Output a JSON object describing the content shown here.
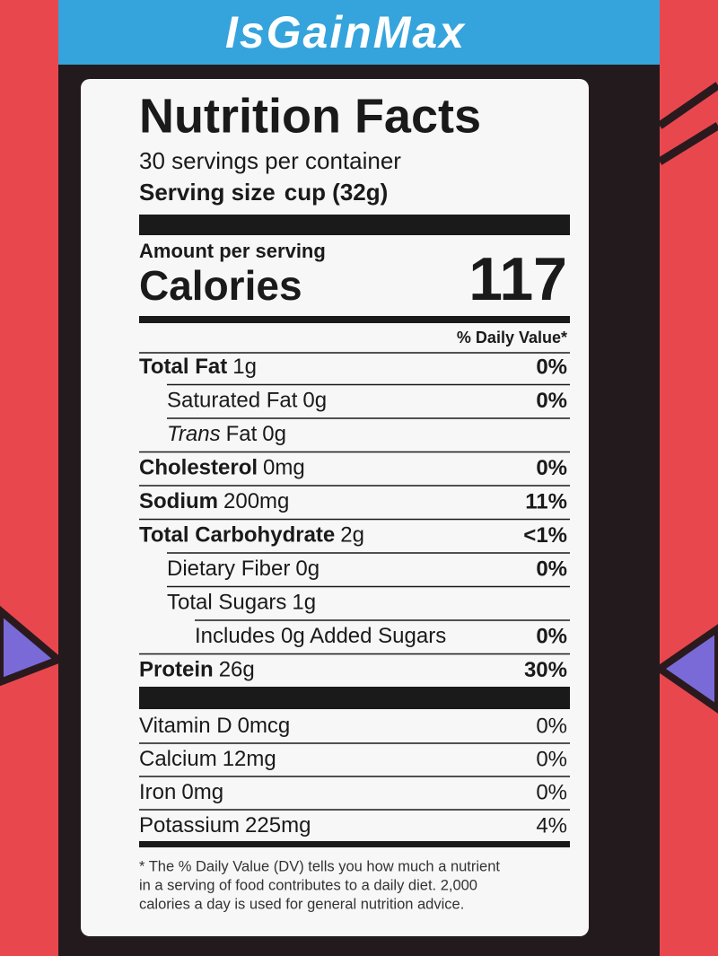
{
  "brand": "IsGainMax",
  "title": "Nutrition Facts",
  "servings": "30 servings per container",
  "serving_size_label": "Serving size",
  "serving_size": "cup (32g)",
  "amount_per_serving": "Amount per serving",
  "calories_label": "Calories",
  "calories": "117",
  "dv_header": "% Daily Value*",
  "nutrients": [
    {
      "name": "Total Fat",
      "amount": "1g",
      "dv": "0%",
      "bold": true,
      "indent": 0
    },
    {
      "name": "Saturated Fat",
      "amount": "0g",
      "dv": "0%",
      "bold": false,
      "indent": 1
    },
    {
      "name_italic": "Trans",
      "name": "Fat",
      "amount": "0g",
      "bold": false,
      "indent": 1
    },
    {
      "name": "Cholesterol",
      "amount": "0mg",
      "dv": "0%",
      "bold": true,
      "indent": 0
    },
    {
      "name": "Sodium",
      "amount": "200mg",
      "dv": "11%",
      "bold": true,
      "indent": 0
    },
    {
      "name": "Total Carbohydrate",
      "amount": "2g",
      "dv": "<1%",
      "bold": true,
      "indent": 0
    },
    {
      "name": "Dietary Fiber",
      "amount": "0g",
      "dv": "0%",
      "bold": false,
      "indent": 1
    },
    {
      "name": "Total Sugars",
      "amount": "1g",
      "bold": false,
      "indent": 1
    },
    {
      "name": "Includes 0g Added Sugars",
      "dv": "0%",
      "bold": false,
      "indent": 2
    },
    {
      "name": "Protein",
      "amount": "26g",
      "dv": "30%",
      "bold": true,
      "indent": 0
    }
  ],
  "vitamins": [
    {
      "name": "Vitamin D",
      "amount": "0mcg",
      "dv": "0%"
    },
    {
      "name": "Calcium",
      "amount": "12mg",
      "dv": "0%"
    },
    {
      "name": "Iron",
      "amount": "0mg",
      "dv": "0%"
    },
    {
      "name": "Potassium",
      "amount": "225mg",
      "dv": "4%"
    }
  ],
  "footnote": [
    "* The % Daily Value (DV) tells you how much a nutrient",
    "in a serving of food contributes to a daily diet. 2,000",
    "calories a day is used for general nutrition advice."
  ]
}
